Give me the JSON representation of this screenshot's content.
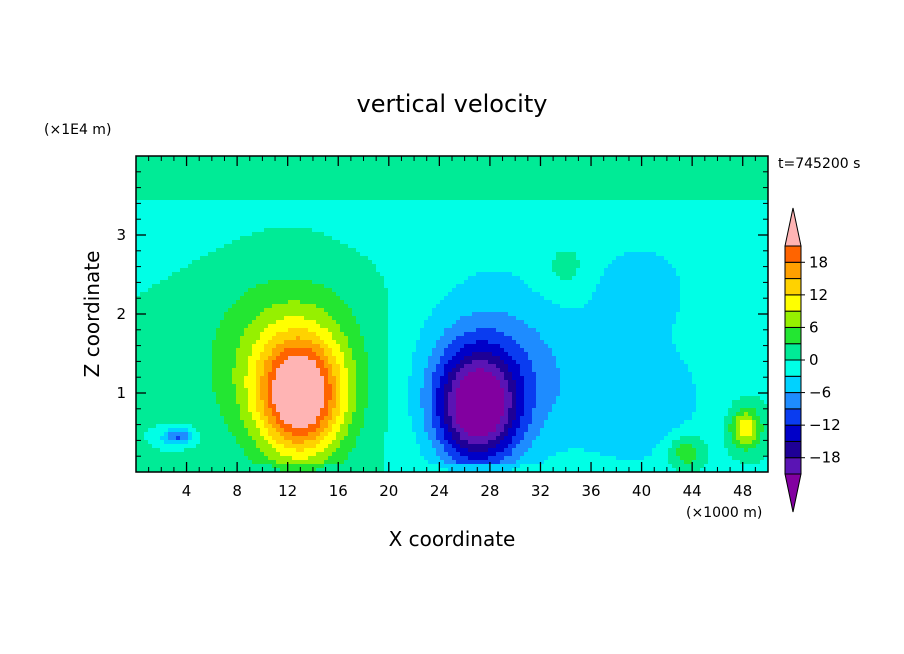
{
  "chart_data": {
    "type": "heatmap",
    "title": "vertical velocity",
    "xlabel": "X coordinate",
    "ylabel": "Z coordinate",
    "x_unit_label": "(×1000 m)",
    "y_unit_label": "(×1E4 m)",
    "time_label": "t=745200 s",
    "xlim": [
      0,
      50
    ],
    "ylim": [
      0,
      4
    ],
    "x_ticks": [
      4,
      8,
      12,
      16,
      20,
      24,
      28,
      32,
      36,
      40,
      44,
      48
    ],
    "x_tick_labels": [
      "4",
      "8",
      "12",
      "16",
      "20",
      "24",
      "28",
      "32",
      "36",
      "40",
      "44",
      "48"
    ],
    "y_ticks": [
      1,
      2,
      3
    ],
    "y_tick_labels": [
      "1",
      "2",
      "3"
    ],
    "colorbar": {
      "levels": [
        -21,
        -18,
        -15,
        -12,
        -9,
        -6,
        -3,
        0,
        3,
        6,
        9,
        12,
        15,
        18,
        21
      ],
      "tick_values": [
        -18,
        -12,
        -6,
        0,
        6,
        12,
        18
      ],
      "tick_labels": [
        "−18",
        "−12",
        "−6",
        "0",
        "6",
        "12",
        "18"
      ],
      "colors": [
        "#8200a0",
        "#5a14b4",
        "#1e0096",
        "#0000c8",
        "#0a3cf0",
        "#1e8cff",
        "#00d2ff",
        "#00ffe6",
        "#00eb96",
        "#23e632",
        "#96f000",
        "#ffff00",
        "#ffd200",
        "#ffa000",
        "#ff6400",
        "#ff3200",
        "#e61414",
        "#ffb4b4"
      ],
      "extend": "both"
    },
    "features": [
      {
        "kind": "updraft",
        "x": 13,
        "z": 0.95,
        "peak": 23,
        "sx": 3.2,
        "sz": 0.72
      },
      {
        "kind": "updraft-halo",
        "x": 12,
        "z": 1.4,
        "peak": 8,
        "sx": 6.0,
        "sz": 1.05
      },
      {
        "kind": "downdraft",
        "x": 27,
        "z": 0.8,
        "peak": -22,
        "sx": 3.2,
        "sz": 0.7
      },
      {
        "kind": "downdraft-halo",
        "x": 28.5,
        "z": 1.3,
        "peak": -8,
        "sx": 6.5,
        "sz": 1.1
      },
      {
        "kind": "downdraft",
        "x": 40,
        "z": 0.9,
        "peak": -5,
        "sx": 6.0,
        "sz": 1.0
      },
      {
        "kind": "downdraft",
        "x": 40,
        "z": 2.3,
        "peak": -4,
        "sx": 4.0,
        "sz": 0.5
      },
      {
        "kind": "updraft",
        "x": 48.2,
        "z": 0.55,
        "peak": 12,
        "sx": 1.2,
        "sz": 0.25
      },
      {
        "kind": "updraft",
        "x": 43.5,
        "z": 0.25,
        "peak": 7,
        "sx": 1.5,
        "sz": 0.22
      },
      {
        "kind": "downdraft",
        "x": 3.3,
        "z": 0.45,
        "peak": -10,
        "sx": 1.2,
        "sz": 0.1
      },
      {
        "kind": "updraft",
        "x": 34,
        "z": 2.6,
        "peak": 3,
        "sx": 2.0,
        "sz": 0.35
      }
    ]
  }
}
